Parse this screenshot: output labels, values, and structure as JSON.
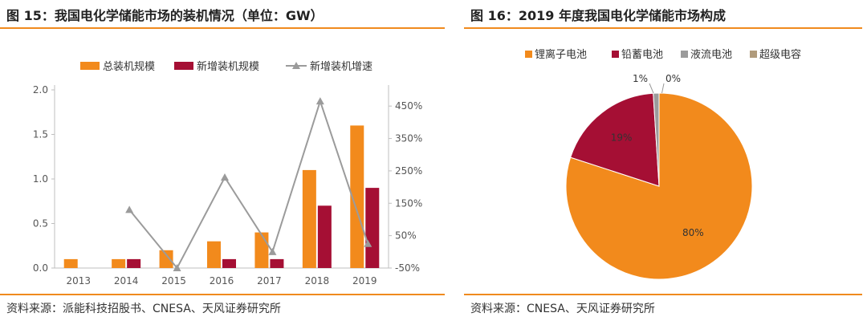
{
  "figures": [
    {
      "title": "图 15：我国电化学储能市场的装机情况（单位：GW）",
      "source": "资料来源：派能科技招股书、CNESA、天风证券研究所"
    },
    {
      "title": "图 16：2019 年度我国电化学储能市场构成",
      "source": "资料来源：CNESA、天风证券研究所"
    }
  ],
  "colors": {
    "orange": "#F28A1C",
    "crimson": "#A50F34",
    "gray": "#9B9B9B",
    "tan": "#B09B7C",
    "rule": "#F08A1E"
  },
  "chart_data": [
    {
      "type": "bar",
      "categories": [
        "2013",
        "2014",
        "2015",
        "2016",
        "2017",
        "2018",
        "2019"
      ],
      "series": [
        {
          "name": "总装机规模",
          "type": "bar",
          "axis": "left",
          "values": [
            0.1,
            0.1,
            0.2,
            0.3,
            0.4,
            1.1,
            1.6
          ]
        },
        {
          "name": "新增装机规模",
          "type": "bar",
          "axis": "left",
          "values": [
            null,
            0.1,
            null,
            0.1,
            0.1,
            0.7,
            0.9
          ]
        },
        {
          "name": "新增装机增速",
          "type": "line",
          "axis": "right",
          "unit": "%",
          "values": [
            null,
            130,
            -50,
            230,
            0,
            465,
            25
          ]
        }
      ],
      "yticks_left": [
        "0.0",
        "0.5",
        "1.0",
        "1.5",
        "2.0"
      ],
      "ylim_left": [
        0,
        2.0
      ],
      "yticks_right": [
        "-50%",
        "50%",
        "150%",
        "250%",
        "350%",
        "450%"
      ],
      "ylim_right": [
        -50,
        500
      ],
      "legend_position": "top"
    },
    {
      "type": "pie",
      "labels": [
        "锂离子电池",
        "铅蓄电池",
        "液流电池",
        "超级电容"
      ],
      "values": [
        80,
        19,
        1,
        0
      ],
      "value_labels": [
        "80%",
        "19%",
        "1%",
        "0%"
      ],
      "legend_position": "top"
    }
  ]
}
